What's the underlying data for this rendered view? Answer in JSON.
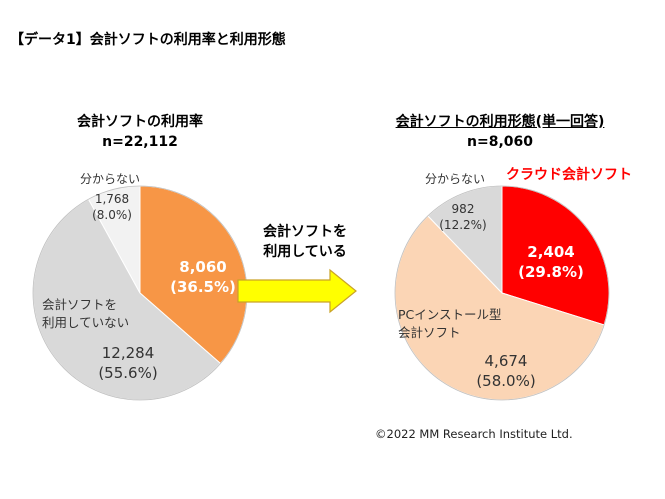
{
  "header": {
    "title": "【データ1】会計ソフトの利用率と利用形態"
  },
  "colors": {
    "orange": "#F79646",
    "gray_light": "#D9D9D9",
    "gray_lighter": "#F2F2F2",
    "red": "#FF0000",
    "peach": "#FBD5B5",
    "arrow_fill": "#FFFF00",
    "arrow_stroke": "#C9A227"
  },
  "chart_data": [
    {
      "type": "pie",
      "title": "会計ソフトの利用率",
      "subtitle": "n=22,112",
      "slices": [
        {
          "label": "",
          "value": 8060,
          "value_label": "8,060",
          "percent_label": "(36.5%)",
          "percent": 36.5,
          "color": "#F79646"
        },
        {
          "label": "会計ソフトを\n利用していない",
          "label_line1": "会計ソフトを",
          "label_line2": "利用していない",
          "value": 12284,
          "value_label": "12,284",
          "percent_label": "(55.6%)",
          "percent": 55.6,
          "color": "#D9D9D9"
        },
        {
          "label": "分からない",
          "value": 1768,
          "value_label": "1,768",
          "percent_label": "(8.0%)",
          "percent": 8.0,
          "color": "#F2F2F2"
        }
      ]
    },
    {
      "type": "pie",
      "title": "会計ソフトの利用形態(単一回答)",
      "subtitle": "n=8,060",
      "slices": [
        {
          "label": "クラウド会計ソフト",
          "value": 2404,
          "value_label": "2,404",
          "percent_label": "(29.8%)",
          "percent": 29.8,
          "color": "#FF0000"
        },
        {
          "label": "PCインストール型\n会計ソフト",
          "label_line1": "PCインストール型",
          "label_line2": "会計ソフト",
          "value": 4674,
          "value_label": "4,674",
          "percent_label": "(58.0%)",
          "percent": 58.0,
          "color": "#FBD5B5"
        },
        {
          "label": "分からない",
          "value": 982,
          "value_label": "982",
          "percent_label": "(12.2%)",
          "percent": 12.2,
          "color": "#D9D9D9"
        }
      ]
    }
  ],
  "arrow": {
    "line1": "会計ソフトを",
    "line2": "利用している"
  },
  "footer": {
    "copyright": "©2022 MM Research Institute Ltd."
  }
}
